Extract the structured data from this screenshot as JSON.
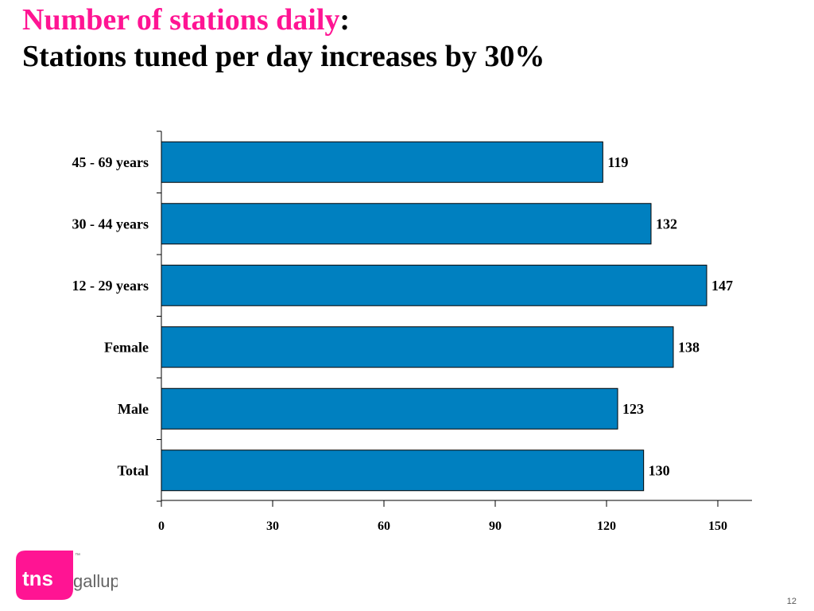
{
  "slide": {
    "title_main": "Number of  stations daily",
    "title_colon": ":",
    "subtitle": "Stations tuned per day increases by 30%",
    "page_number": "12",
    "accent_color": "#ff1493"
  },
  "logo": {
    "name": "tns-gallup-logo",
    "brand": "tns",
    "partner": "gallup",
    "trademark": "™",
    "color": "#ff1493"
  },
  "chart_data": {
    "type": "bar",
    "orientation": "horizontal",
    "categories": [
      "45 - 69 years",
      "30 - 44 years",
      "12 - 29 years",
      "Female",
      "Male",
      "Total"
    ],
    "values": [
      119,
      132,
      147,
      138,
      123,
      130
    ],
    "xlim": [
      0,
      160
    ],
    "xticks": [
      0,
      30,
      60,
      90,
      120,
      150
    ],
    "bar_color": "#0080c0",
    "grid": false,
    "legend": "none",
    "data_labels": true
  }
}
